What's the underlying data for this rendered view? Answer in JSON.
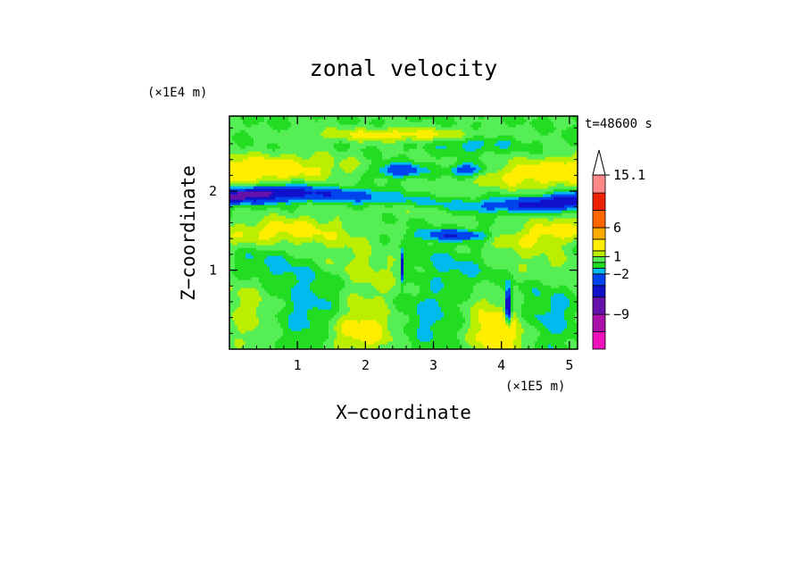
{
  "chart_data": {
    "type": "heatmap",
    "title": "zonal velocity",
    "xlabel": "X−coordinate",
    "ylabel": "Z−coordinate",
    "x_unit": "(×1E5 m)",
    "y_unit": "(×1E4 m)",
    "time_label": "t=48600 s",
    "xlim": [
      0,
      5.12
    ],
    "ylim": [
      0,
      2.95
    ],
    "x_ticks": [
      "1",
      "2",
      "3",
      "4",
      "5"
    ],
    "x_tick_values": [
      1,
      2,
      3,
      4,
      5
    ],
    "y_ticks": [
      "1",
      "2"
    ],
    "y_tick_values": [
      1,
      2
    ],
    "colorbar": {
      "labels": [
        "15.1",
        "6",
        "1",
        "−2",
        "−9"
      ],
      "label_values": [
        15.1,
        6,
        1,
        -2,
        -9
      ],
      "levels": [
        -15,
        -12,
        -9,
        -6,
        -4,
        -2,
        -1,
        0,
        1,
        2,
        4,
        6,
        9,
        12,
        15.1
      ],
      "colors": [
        "#ee11bb",
        "#aa11aa",
        "#6611aa",
        "#1111cc",
        "#0044ee",
        "#00bbee",
        "#22dd22",
        "#55ee55",
        "#bbee00",
        "#ffee00",
        "#ffaa00",
        "#ff6600",
        "#ee2200",
        "#ff8888",
        "#ffbbbb"
      ],
      "extend_top_color": "#ffffff"
    },
    "field_summary": [
      {
        "band_z": [
          2.0,
          2.5
        ],
        "value_range": [
          1,
          6
        ],
        "note": "positive band, upper left"
      },
      {
        "band_z": [
          1.8,
          2.0
        ],
        "value_range": [
          -9,
          -4
        ],
        "note": "negative jet near z=1.8-1.9"
      },
      {
        "band_z": [
          1.2,
          1.6
        ],
        "value_range": [
          1,
          4
        ],
        "note": "positive band, left and right"
      },
      {
        "band_z": [
          0.1,
          1.0
        ],
        "value_range": [
          -2,
          2
        ],
        "note": "near-zero lower layer"
      },
      {
        "band_z": [
          0.0,
          0.6
        ],
        "value_range": [
          -9,
          6
        ],
        "note": "small-scale structure near x=2.5 and x=4.1"
      }
    ]
  }
}
